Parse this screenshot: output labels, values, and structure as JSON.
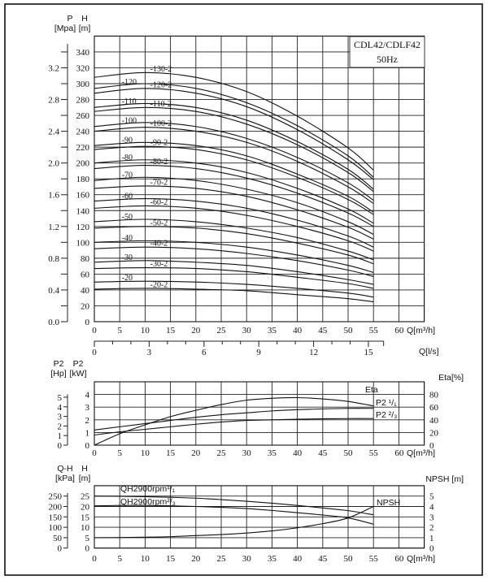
{
  "chart_data": [
    {
      "type": "line",
      "title": "CDL42/CDLF42",
      "subtitle": "50Hz",
      "grid": true,
      "x_label": "Q[m³/h]",
      "xlim": [
        0,
        65
      ],
      "x_ticks": [
        0,
        5,
        10,
        15,
        20,
        25,
        30,
        35,
        40,
        45,
        50,
        55,
        60
      ],
      "x2_label": "Q[l/s]",
      "x2_ticks": [
        0,
        3,
        6,
        9,
        12,
        15
      ],
      "y_label": "H",
      "y_unit": "[m]",
      "ylim": [
        0,
        360
      ],
      "y_ticks": [
        0,
        20,
        40,
        60,
        80,
        100,
        120,
        140,
        160,
        180,
        200,
        220,
        240,
        260,
        280,
        300,
        320,
        340
      ],
      "y2_label": "P",
      "y2_unit": "[Mpa]",
      "y2_ticks": [
        "0.0",
        "0.4",
        "0.8",
        "1.2",
        "1.6",
        "2.0",
        "2.4",
        "2.8",
        "3.2"
      ],
      "x": [
        0,
        10,
        20,
        30,
        40,
        50,
        55
      ],
      "series": [
        {
          "name": "-130-2",
          "values": [
            308,
            314,
            308,
            290,
            259,
            219,
            191
          ]
        },
        {
          "name": "-120",
          "values": [
            294,
            300,
            294,
            276,
            247,
            209,
            182
          ]
        },
        {
          "name": "-120-2",
          "values": [
            288,
            294,
            288,
            271,
            242,
            204,
            179
          ]
        },
        {
          "name": "-110",
          "values": [
            270,
            275,
            270,
            254,
            227,
            192,
            167
          ]
        },
        {
          "name": "-110-2",
          "values": [
            265,
            270,
            265,
            249,
            223,
            188,
            164
          ]
        },
        {
          "name": "-100",
          "values": [
            246,
            251,
            246,
            231,
            207,
            175,
            153
          ]
        },
        {
          "name": "-100-2",
          "values": [
            240,
            245,
            240,
            226,
            202,
            170,
            149
          ]
        },
        {
          "name": "-90",
          "values": [
            222,
            226,
            222,
            209,
            186,
            158,
            138
          ]
        },
        {
          "name": "-90-2",
          "values": [
            217,
            221,
            217,
            204,
            182,
            154,
            135
          ]
        },
        {
          "name": "-80",
          "values": [
            200,
            204,
            200,
            188,
            168,
            142,
            124
          ]
        },
        {
          "name": "-80-2",
          "values": [
            193,
            197,
            193,
            181,
            162,
            137,
            120
          ]
        },
        {
          "name": "-70",
          "values": [
            178,
            182,
            178,
            167,
            150,
            126,
            110
          ]
        },
        {
          "name": "-70-2",
          "values": [
            168,
            171,
            168,
            158,
            141,
            119,
            104
          ]
        },
        {
          "name": "-60",
          "values": [
            152,
            155,
            152,
            143,
            128,
            108,
            94
          ]
        },
        {
          "name": "-60-2",
          "values": [
            143,
            146,
            143,
            134,
            120,
            102,
            89
          ]
        },
        {
          "name": "-50",
          "values": [
            126,
            129,
            126,
            118,
            106,
            89,
            78
          ]
        },
        {
          "name": "-50-2",
          "values": [
            118,
            120,
            118,
            111,
            99,
            84,
            73
          ]
        },
        {
          "name": "-40",
          "values": [
            100,
            102,
            100,
            94,
            84,
            71,
            62
          ]
        },
        {
          "name": "-40-2",
          "values": [
            92,
            94,
            92,
            86,
            77,
            65,
            57
          ]
        },
        {
          "name": "-30",
          "values": [
            75,
            77,
            75,
            71,
            63,
            53,
            47
          ]
        },
        {
          "name": "-30-2",
          "values": [
            67,
            68,
            67,
            63,
            56,
            48,
            42
          ]
        },
        {
          "name": "-20",
          "values": [
            50,
            51,
            50,
            47,
            42,
            36,
            31
          ]
        },
        {
          "name": "-20-2",
          "values": [
            41,
            42,
            41,
            39,
            34,
            29,
            25
          ]
        }
      ]
    },
    {
      "type": "line",
      "grid": true,
      "x_label": "Q[m³/h]",
      "xlim": [
        0,
        65
      ],
      "x_ticks": [
        0,
        5,
        10,
        15,
        20,
        25,
        30,
        35,
        40,
        45,
        50,
        55,
        60
      ],
      "y_label": "P2",
      "y_unit": "[kW]",
      "ylim": [
        0,
        5
      ],
      "y_ticks": [
        0,
        1,
        2,
        3,
        4
      ],
      "y2_label": "P2",
      "y2_unit": "[Hp]",
      "y2_ticks": [
        0,
        1,
        2,
        3,
        4,
        5
      ],
      "y3_label": "Eta[%]",
      "y3_ticks": [
        0,
        20,
        40,
        60,
        80
      ],
      "x": [
        0,
        5,
        10,
        15,
        20,
        25,
        30,
        35,
        40,
        45,
        50,
        55
      ],
      "series": [
        {
          "name": "Eta",
          "unit": "%",
          "values": [
            0,
            18,
            32,
            45,
            55,
            64,
            71,
            74,
            75,
            73,
            69,
            62
          ]
        },
        {
          "name": "P2 ¹/₁",
          "unit": "kW",
          "values": [
            1.2,
            1.45,
            1.7,
            1.95,
            2.2,
            2.4,
            2.55,
            2.7,
            2.8,
            2.86,
            2.9,
            2.9
          ]
        },
        {
          "name": "P2 ²/₃",
          "unit": "kW",
          "values": [
            0.8,
            1.05,
            1.25,
            1.45,
            1.65,
            1.82,
            1.95,
            2.0,
            2.05,
            2.08,
            2.1,
            2.1
          ]
        }
      ]
    },
    {
      "type": "line",
      "grid": true,
      "x_label": "Q[m³/h]",
      "xlim": [
        0,
        65
      ],
      "x_ticks": [
        0,
        5,
        10,
        15,
        20,
        25,
        30,
        35,
        40,
        45,
        50,
        55,
        60
      ],
      "y_label": "H",
      "y_unit": "[m]",
      "ylim": [
        0,
        30
      ],
      "y_ticks": [
        0,
        5,
        10,
        15,
        20,
        25
      ],
      "y2_label": "Q-H",
      "y2_unit": "[kPa]",
      "y2_ticks": [
        0,
        50,
        100,
        150,
        200,
        250
      ],
      "y3_label": "NPSH [m]",
      "y3_ticks": [
        0,
        1,
        2,
        3,
        4,
        5
      ],
      "x": [
        0,
        5,
        10,
        15,
        20,
        25,
        30,
        35,
        40,
        45,
        50,
        55
      ],
      "series": [
        {
          "name": "QH2900rpm¹/₁",
          "unit": "m",
          "values": [
            25,
            24.9,
            24.7,
            24.4,
            24,
            23.3,
            22.5,
            21.6,
            20.5,
            19.3,
            18,
            16
          ]
        },
        {
          "name": "QH2900rpm²/₃",
          "unit": "m",
          "values": [
            20.3,
            20.5,
            20.5,
            20.3,
            20,
            19.6,
            19,
            18.1,
            17,
            15.9,
            14.5,
            11.5
          ]
        },
        {
          "name": "NPSH",
          "unit": "m",
          "values": [
            1.0,
            1.02,
            1.05,
            1.1,
            1.2,
            1.3,
            1.45,
            1.65,
            1.95,
            2.35,
            2.9,
            4.0
          ]
        }
      ]
    }
  ]
}
